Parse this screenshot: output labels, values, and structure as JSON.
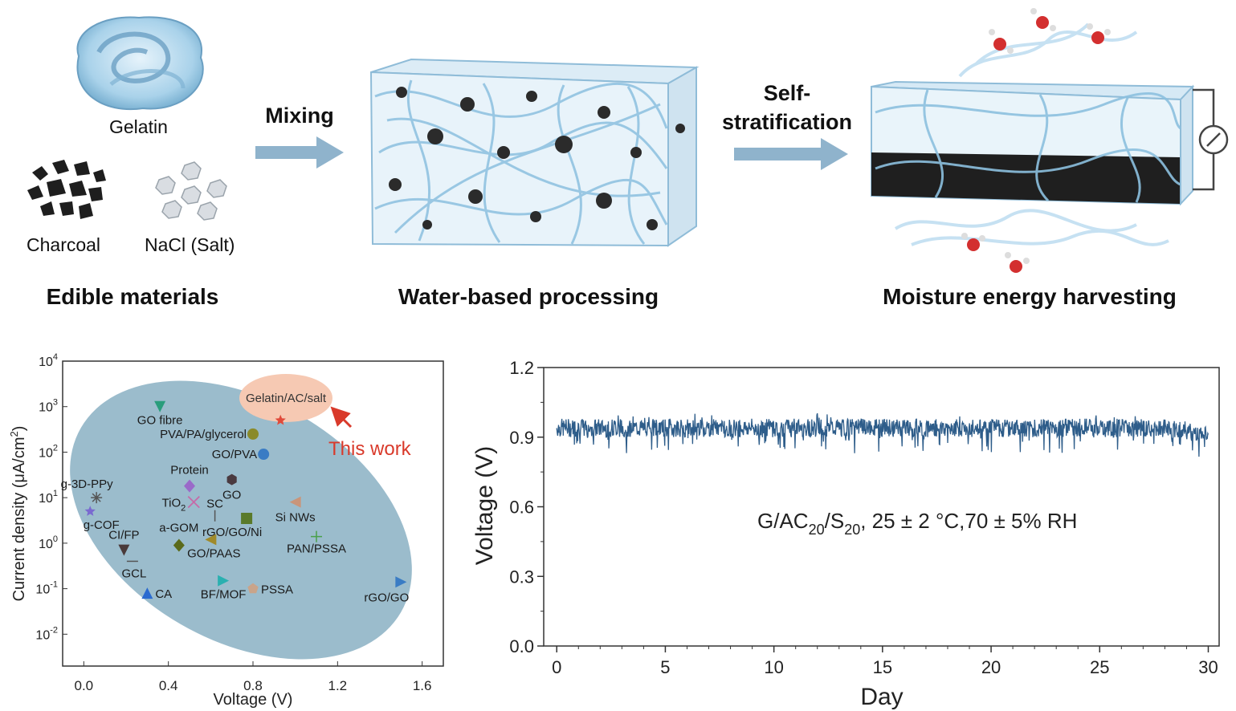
{
  "top": {
    "materials": {
      "gelatin": "Gelatin",
      "charcoal": "Charcoal",
      "salt": "NaCl (Salt)",
      "caption": "Edible materials"
    },
    "step1": "Mixing",
    "processing_caption": "Water-based processing",
    "step2_line1": "Self-",
    "step2_line2": "stratification",
    "harvest_caption": "Moisture energy harvesting"
  },
  "colors": {
    "arrow": "#8fb3cc",
    "fiber": "#9cc6e0",
    "ellipse": "#9bbccc",
    "highlight": "#f6c9b3",
    "series": "#2e5d8a",
    "this_work": "#d93a2b"
  },
  "chart_data": [
    {
      "type": "scatter",
      "xlabel": "Voltage (V)",
      "ylabel_parts": [
        "Current density (μA/cm",
        "2",
        ")"
      ],
      "xlim": [
        -0.1,
        1.7
      ],
      "x_ticks": [
        "0.0",
        "0.4",
        "0.8",
        "1.2",
        "1.6"
      ],
      "ylim_log10": [
        -2.7,
        4
      ],
      "y_tick_exponents": [
        "4",
        "3",
        "2",
        "1",
        "0",
        "-1",
        "-2"
      ],
      "y_scale": "log",
      "highlight_label": "Gelatin/AC/salt",
      "annotation": "This work",
      "points": [
        {
          "label": "GO fibre",
          "x": 0.36,
          "y": 1000,
          "marker": "triangle-down",
          "color": "#2a9d7c"
        },
        {
          "label": "Gelatin/AC/salt",
          "x": 0.93,
          "y": 500,
          "marker": "star",
          "color": "#e04a3a"
        },
        {
          "label": "PVA/PA/glycerol",
          "x": 0.8,
          "y": 250,
          "marker": "circle",
          "color": "#8a8a2a"
        },
        {
          "label": "GO/PVA",
          "x": 0.85,
          "y": 90,
          "marker": "circle",
          "color": "#3a7cc4"
        },
        {
          "label": "GO",
          "x": 0.7,
          "y": 25,
          "marker": "hexagon",
          "color": "#4a3a40"
        },
        {
          "label": "Protein",
          "x": 0.5,
          "y": 18,
          "marker": "diamond",
          "color": "#9a6ac9"
        },
        {
          "label": "TiO2",
          "x": 0.52,
          "y": 8,
          "marker": "x",
          "color": "#c66aa8"
        },
        {
          "label": "Si NWs",
          "x": 1.0,
          "y": 8,
          "marker": "triangle-left",
          "color": "#c9957a"
        },
        {
          "label": "g-3D-PPy",
          "x": 0.06,
          "y": 10,
          "marker": "asterisk",
          "color": "#555555"
        },
        {
          "label": "g-COF",
          "x": 0.03,
          "y": 5,
          "marker": "star",
          "color": "#7a6ad0"
        },
        {
          "label": "SC",
          "x": 0.62,
          "y": 4,
          "marker": "vline",
          "color": "#555555"
        },
        {
          "label": "rGO/GO/Ni",
          "x": 0.77,
          "y": 3.5,
          "marker": "square",
          "color": "#5a7a2a"
        },
        {
          "label": "PAN/PSSA",
          "x": 1.1,
          "y": 1.4,
          "marker": "plus",
          "color": "#4aa04a"
        },
        {
          "label": "a-GOM",
          "x": 0.45,
          "y": 0.9,
          "marker": "diamond",
          "color": "#5a6a1a"
        },
        {
          "label": "GO/PAAS",
          "x": 0.6,
          "y": 1.2,
          "marker": "triangle-left",
          "color": "#a08a2a"
        },
        {
          "label": "CI/FP",
          "x": 0.19,
          "y": 0.7,
          "marker": "triangle-down",
          "color": "#4a3a3a"
        },
        {
          "label": "GCL",
          "x": 0.23,
          "y": 0.4,
          "marker": "hline",
          "color": "#555555"
        },
        {
          "label": "CA",
          "x": 0.3,
          "y": 0.08,
          "marker": "triangle-up",
          "color": "#2a6ad0"
        },
        {
          "label": "BF/MOF",
          "x": 0.66,
          "y": 0.15,
          "marker": "triangle-right",
          "color": "#2ab0b0"
        },
        {
          "label": "PSSA",
          "x": 0.8,
          "y": 0.1,
          "marker": "pentagon",
          "color": "#c9a48a"
        },
        {
          "label": "rGO/GO",
          "x": 1.5,
          "y": 0.14,
          "marker": "triangle-right",
          "color": "#3a7cc4"
        }
      ]
    },
    {
      "type": "line",
      "xlabel": "Day",
      "ylabel": "Voltage (V)",
      "xlim": [
        -0.6,
        30.5
      ],
      "ylim": [
        0.0,
        1.2
      ],
      "x_ticks": [
        "0",
        "5",
        "10",
        "15",
        "20",
        "25",
        "30"
      ],
      "y_ticks": [
        "0.0",
        "0.3",
        "0.6",
        "0.9",
        "1.2"
      ],
      "annotation_parts": [
        "G/AC",
        "20",
        "/S",
        "20",
        ", 25 ± 2 °C,70 ± 5% RH"
      ],
      "series": [
        {
          "x_range": [
            0,
            30
          ],
          "mean_voltage": 0.95,
          "band_high": 0.98,
          "band_low": 0.9,
          "min": 0.83,
          "max": 1.01
        }
      ]
    }
  ]
}
